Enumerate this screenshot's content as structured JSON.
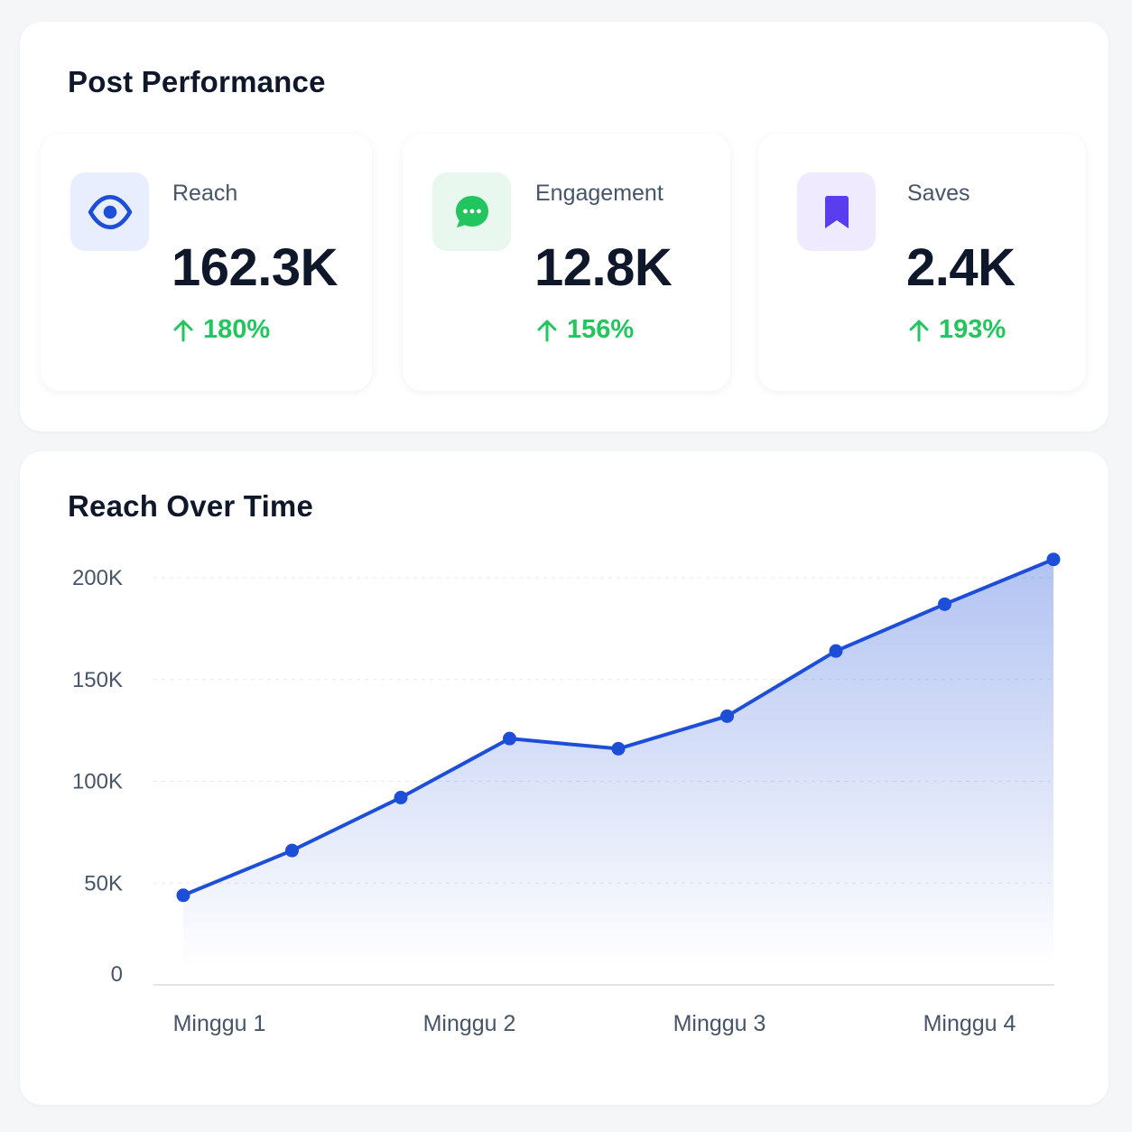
{
  "performance": {
    "title": "Post Performance",
    "metrics": [
      {
        "label": "Reach",
        "value": "162.3K",
        "change": "180%",
        "icon": "eye-icon",
        "accent": "#1d4ed8",
        "icon_bg": "#e8eefd"
      },
      {
        "label": "Engagement",
        "value": "12.8K",
        "change": "156%",
        "icon": "chat-bubble-icon",
        "accent": "#22c55e",
        "icon_bg": "#e9f8ef"
      },
      {
        "label": "Saves",
        "value": "2.4K",
        "change": "193%",
        "icon": "bookmark-icon",
        "accent": "#5b3df0",
        "icon_bg": "#efeafd"
      }
    ],
    "change_color": "#22c55e"
  },
  "chart": {
    "title": "Reach Over Time"
  },
  "chart_data": {
    "type": "area",
    "title": "Reach Over Time",
    "xlabel": "",
    "ylabel": "",
    "x_tick_labels": [
      "Minggu 1",
      "Minggu 2",
      "Minggu 3",
      "Minggu 4"
    ],
    "y_tick_labels": [
      "0",
      "50K",
      "100K",
      "150K",
      "200K"
    ],
    "y_ticks": [
      0,
      50000,
      100000,
      150000,
      200000
    ],
    "ylim": [
      0,
      200000
    ],
    "grid": true,
    "legend": "none",
    "line_color": "#1d4ed8",
    "series": [
      {
        "values": [
          44000,
          66000,
          92000,
          121000,
          116000,
          132000,
          164000,
          187000,
          209000
        ]
      }
    ]
  }
}
